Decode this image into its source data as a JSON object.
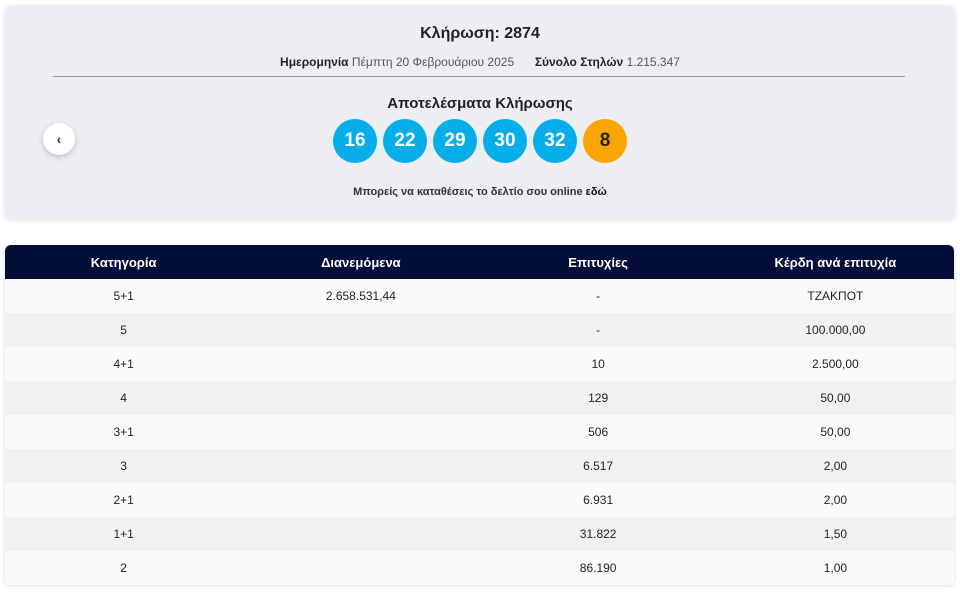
{
  "draw": {
    "title": "Κλήρωση: 2874",
    "date_label": "Ημερομηνία",
    "date_value": "Πέμπτη 20 Φεβρουάριου 2025",
    "columns_label": "Σύνολο Στηλών",
    "columns_value": "1.215.347"
  },
  "results": {
    "title": "Αποτελέσματα Κλήρωσης",
    "numbers": [
      "16",
      "22",
      "29",
      "30",
      "32"
    ],
    "bonus": "8",
    "note_text": "Μπορείς να καταθέσεις το δελτίο σου online ",
    "note_link": "εδώ"
  },
  "nav": {
    "prev_icon": "chevron-left-icon",
    "prev_glyph": "‹"
  },
  "colors": {
    "ball": "#06aee9",
    "bonus": "#f9a602",
    "header": "#030e38"
  },
  "table": {
    "headers": [
      "Κατηγορία",
      "Διανεμόμενα",
      "Επιτυχίες",
      "Κέρδη ανά επιτυχία"
    ],
    "rows": [
      [
        "5+1",
        "2.658.531,44",
        "-",
        "ΤΖΑΚΠΟΤ"
      ],
      [
        "5",
        "",
        "-",
        "100.000,00"
      ],
      [
        "4+1",
        "",
        "10",
        "2.500,00"
      ],
      [
        "4",
        "",
        "129",
        "50,00"
      ],
      [
        "3+1",
        "",
        "506",
        "50,00"
      ],
      [
        "3",
        "",
        "6.517",
        "2,00"
      ],
      [
        "2+1",
        "",
        "6.931",
        "2,00"
      ],
      [
        "1+1",
        "",
        "31.822",
        "1,50"
      ],
      [
        "2",
        "",
        "86.190",
        "1,00"
      ]
    ]
  }
}
